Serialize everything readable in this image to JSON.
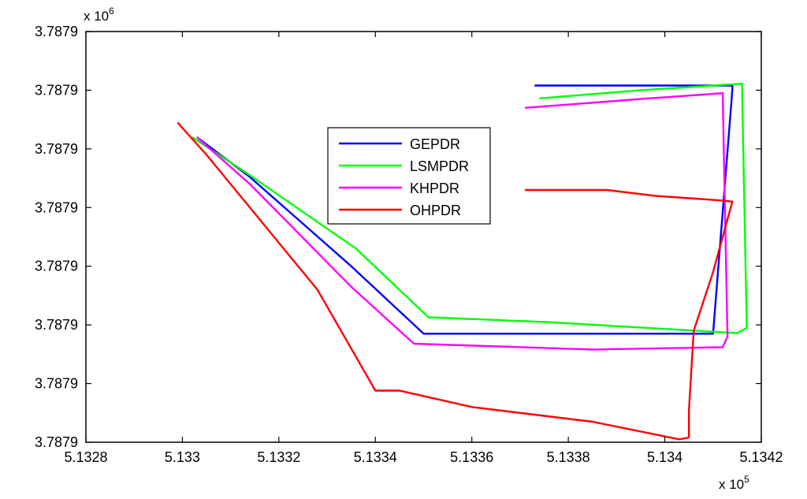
{
  "chart_data": {
    "type": "line",
    "title": "",
    "xlabel": "",
    "ylabel": "",
    "x_multiplier": "x 10",
    "x_multiplier_exp": "5",
    "y_multiplier": "x 10",
    "y_multiplier_exp": "6",
    "xlim": [
      5.1328,
      5.1342
    ],
    "ylim": [
      0,
      7
    ],
    "x_ticks": [
      5.1328,
      5.133,
      5.1332,
      5.1334,
      5.1336,
      5.1338,
      5.134,
      5.1342
    ],
    "x_tick_labels": [
      "5.1328",
      "5.133",
      "5.1332",
      "5.1334",
      "5.1336",
      "5.1338",
      "5.134",
      "5.1342"
    ],
    "y_ticks": [
      0,
      1,
      2,
      3,
      4,
      5,
      6,
      7
    ],
    "y_tick_labels": [
      "3.7879",
      "3.7879",
      "3.7879",
      "3.7879",
      "3.7879",
      "3.7879",
      "3.7879",
      "3.7879"
    ],
    "grid": false,
    "legend_position": "upper-center",
    "series": [
      {
        "name": "GEPDR",
        "color": "#0000ff",
        "x": [
          5.13303,
          5.13314,
          5.13335,
          5.1335,
          5.1341,
          5.13414,
          5.13414,
          5.13373
        ],
        "y": [
          5.2,
          4.52,
          3.0,
          1.85,
          1.85,
          6.01,
          6.08,
          6.08
        ]
      },
      {
        "name": "LSMPDR",
        "color": "#00ff00",
        "x": [
          5.13302,
          5.13314,
          5.13336,
          5.13351,
          5.13375,
          5.13415,
          5.13417,
          5.13416,
          5.13395,
          5.13374
        ],
        "y": [
          5.2,
          4.55,
          3.3,
          2.13,
          2.05,
          1.86,
          1.95,
          6.11,
          6.0,
          5.86
        ]
      },
      {
        "name": "KHPDR",
        "color": "#ff00ff",
        "x": [
          5.13303,
          5.13314,
          5.13335,
          5.13348,
          5.13385,
          5.13412,
          5.13413,
          5.13412,
          5.13395,
          5.13371
        ],
        "y": [
          5.2,
          4.4,
          2.65,
          1.68,
          1.58,
          1.62,
          1.8,
          5.95,
          5.85,
          5.7
        ]
      },
      {
        "name": "OHPDR",
        "color": "#ff0000",
        "x": [
          5.13299,
          5.13305,
          5.13314,
          5.13328,
          5.1334,
          5.13345,
          5.1336,
          5.13385,
          5.13403,
          5.13405,
          5.13405,
          5.13406,
          5.1341,
          5.13413,
          5.13414,
          5.13412,
          5.13398,
          5.13388,
          5.13371
        ],
        "y": [
          5.45,
          4.9,
          4.0,
          2.6,
          0.88,
          0.88,
          0.6,
          0.35,
          0.05,
          0.08,
          0.55,
          1.9,
          2.9,
          3.8,
          4.1,
          4.12,
          4.2,
          4.3,
          4.3
        ]
      }
    ]
  }
}
